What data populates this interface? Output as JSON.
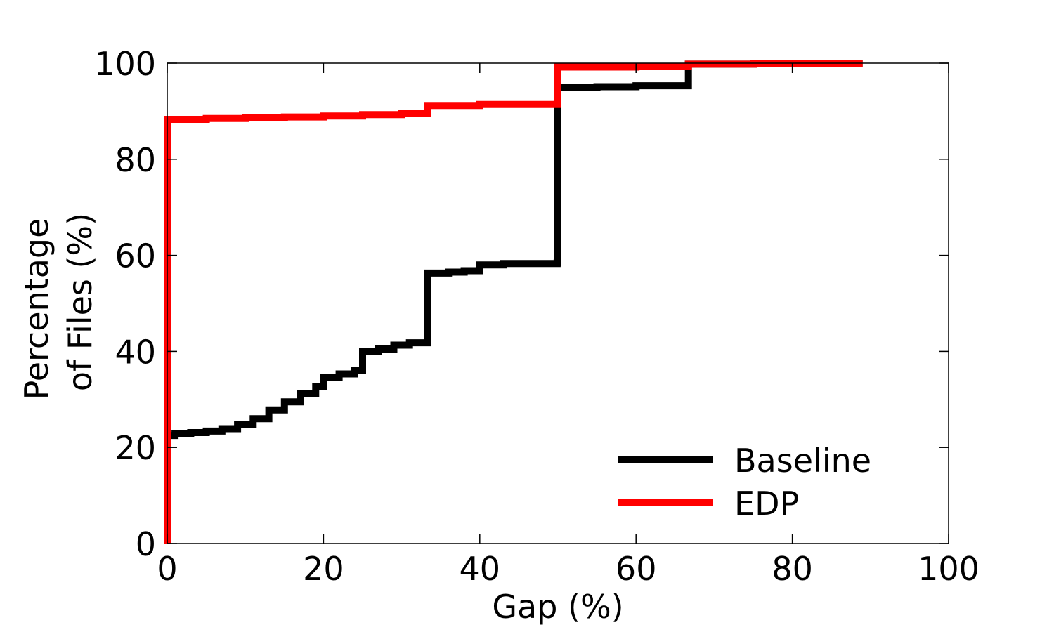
{
  "chart_data": {
    "type": "line",
    "title": "",
    "xlabel": "Gap (%)",
    "ylabel_lines": [
      "Percentage",
      "of Files (%)"
    ],
    "xlim": [
      0,
      100
    ],
    "ylim": [
      0,
      100
    ],
    "xticks": [
      0,
      20,
      40,
      60,
      80,
      100
    ],
    "yticks": [
      0,
      20,
      40,
      60,
      80,
      100
    ],
    "xtick_labels": [
      "0",
      "20",
      "40",
      "60",
      "80",
      "100"
    ],
    "ytick_labels": [
      "0",
      "20",
      "40",
      "60",
      "80",
      "100"
    ],
    "grid": false,
    "legend_position": "bottom-right",
    "series": [
      {
        "name": "Baseline",
        "color": "#000000",
        "step": true,
        "points": [
          [
            0,
            22.5
          ],
          [
            1,
            22.9
          ],
          [
            3,
            23.1
          ],
          [
            5,
            23.4
          ],
          [
            7,
            23.9
          ],
          [
            9,
            24.8
          ],
          [
            11,
            26.0
          ],
          [
            13,
            27.8
          ],
          [
            15,
            29.5
          ],
          [
            17,
            31.2
          ],
          [
            19,
            32.7
          ],
          [
            20,
            34.5
          ],
          [
            22,
            35.3
          ],
          [
            24,
            36.0
          ],
          [
            25,
            40.0
          ],
          [
            27,
            40.5
          ],
          [
            29,
            41.3
          ],
          [
            31,
            41.8
          ],
          [
            33.3,
            56.3
          ],
          [
            36,
            56.5
          ],
          [
            38,
            56.8
          ],
          [
            40,
            58.0
          ],
          [
            43,
            58.3
          ],
          [
            49.9,
            58.5
          ],
          [
            50,
            95.0
          ],
          [
            55,
            95.1
          ],
          [
            60,
            95.3
          ],
          [
            66.7,
            99.8
          ],
          [
            75,
            100
          ],
          [
            89,
            100
          ]
        ]
      },
      {
        "name": "EDP",
        "color": "#ff0000",
        "step": true,
        "points": [
          [
            0,
            0
          ],
          [
            0,
            88.3
          ],
          [
            5,
            88.5
          ],
          [
            10,
            88.6
          ],
          [
            15,
            88.8
          ],
          [
            20,
            89.0
          ],
          [
            25,
            89.3
          ],
          [
            30,
            89.5
          ],
          [
            33.3,
            91.2
          ],
          [
            40,
            91.4
          ],
          [
            49.9,
            91.5
          ],
          [
            50,
            99.2
          ],
          [
            60,
            99.3
          ],
          [
            66.7,
            99.8
          ],
          [
            75,
            100
          ],
          [
            89,
            100
          ]
        ]
      }
    ]
  }
}
